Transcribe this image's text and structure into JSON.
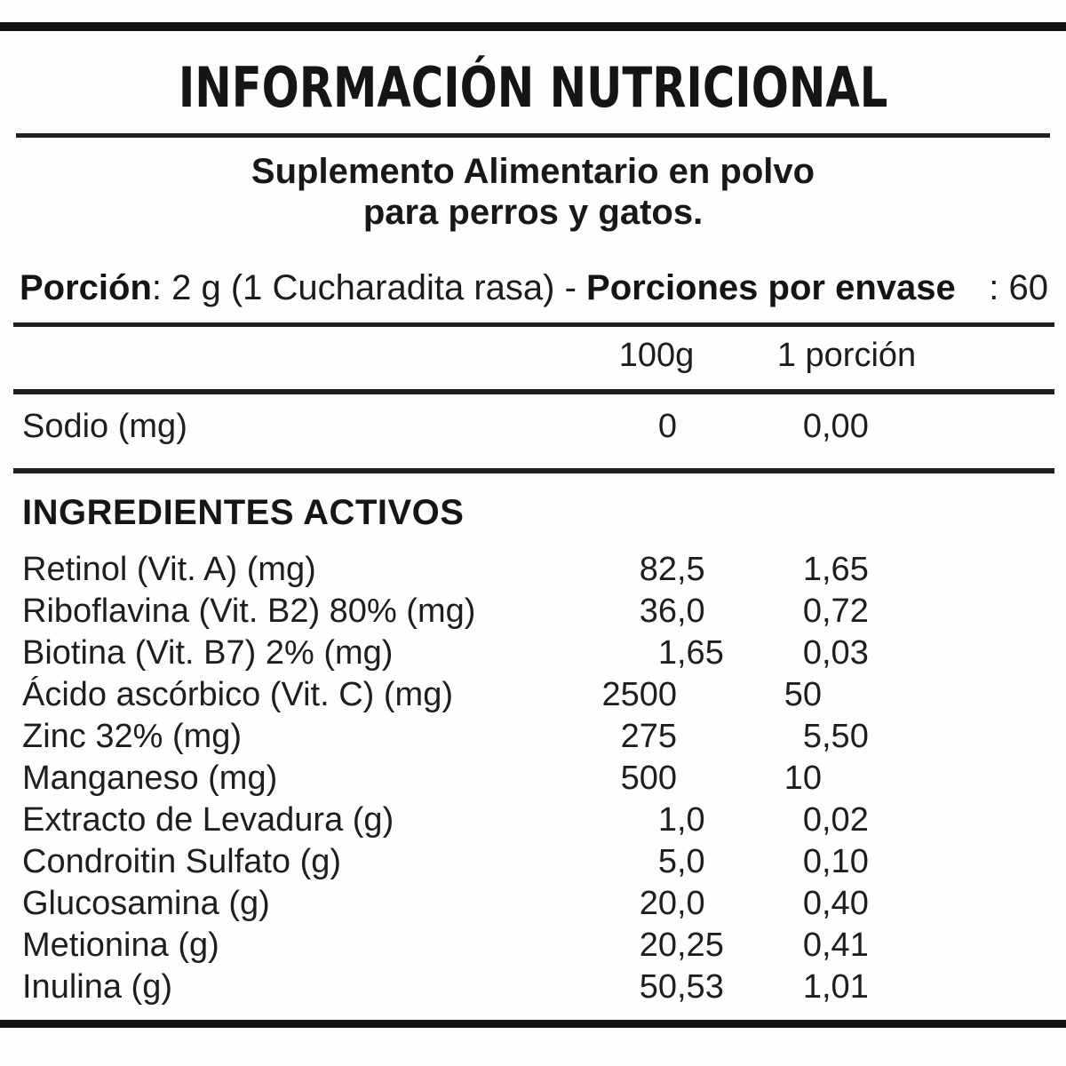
{
  "header": {
    "title": "INFORMACIÓN NUTRICIONAL",
    "subtitle_line1": "Suplemento Alimentario en polvo",
    "subtitle_line2": "para perros y gatos."
  },
  "serving": {
    "portion_label": "Porción",
    "portion_detail": ": 2 g (1 Cucharadita rasa) - ",
    "servings_label": "Porciones por envase",
    "servings_suffix": ": 60"
  },
  "table": {
    "column_headers": {
      "per_100g": "100g",
      "per_portion": "1 porción"
    },
    "sodium_row": {
      "label": "Sodio (mg)",
      "per_100g_int": "0",
      "per_100g_dec": "",
      "per_portion_int": "0",
      "per_portion_dec": ",00"
    },
    "section_heading": "INGREDIENTES ACTIVOS",
    "rows": [
      {
        "label": "Retinol (Vit. A) (mg)",
        "per_100g_int": "82",
        "per_100g_dec": ",5",
        "per_portion_int": "1",
        "per_portion_dec": ",65"
      },
      {
        "label": "Riboflavina (Vit. B2) 80% (mg)",
        "per_100g_int": "36",
        "per_100g_dec": ",0",
        "per_portion_int": "0",
        "per_portion_dec": ",72"
      },
      {
        "label": "Biotina (Vit. B7) 2% (mg)",
        "per_100g_int": "1",
        "per_100g_dec": ",65",
        "per_portion_int": "0",
        "per_portion_dec": ",03"
      },
      {
        "label": "Ácido ascórbico (Vit. C) (mg)",
        "per_100g_int": "2500",
        "per_100g_dec": "",
        "per_portion_int": "50",
        "per_portion_dec": ""
      },
      {
        "label": "Zinc 32% (mg)",
        "per_100g_int": "275",
        "per_100g_dec": "",
        "per_portion_int": "5",
        "per_portion_dec": ",50"
      },
      {
        "label": "Manganeso (mg)",
        "per_100g_int": "500",
        "per_100g_dec": "",
        "per_portion_int": "10",
        "per_portion_dec": ""
      },
      {
        "label": "Extracto de Levadura (g)",
        "per_100g_int": "1",
        "per_100g_dec": ",0",
        "per_portion_int": "0",
        "per_portion_dec": ",02"
      },
      {
        "label": "Condroitin Sulfato (g)",
        "per_100g_int": "5",
        "per_100g_dec": ",0",
        "per_portion_int": "0",
        "per_portion_dec": ",10"
      },
      {
        "label": "Glucosamina (g)",
        "per_100g_int": "20",
        "per_100g_dec": ",0",
        "per_portion_int": "0",
        "per_portion_dec": ",40"
      },
      {
        "label": "Metionina (g)",
        "per_100g_int": "20",
        "per_100g_dec": ",25",
        "per_portion_int": "0",
        "per_portion_dec": ",41"
      },
      {
        "label": "Inulina (g)",
        "per_100g_int": "50",
        "per_100g_dec": ",53",
        "per_portion_int": "1",
        "per_portion_dec": ",01"
      }
    ]
  },
  "colors": {
    "ink": "#1e1e1e",
    "bar": "#121212",
    "background": "#fefefe"
  }
}
